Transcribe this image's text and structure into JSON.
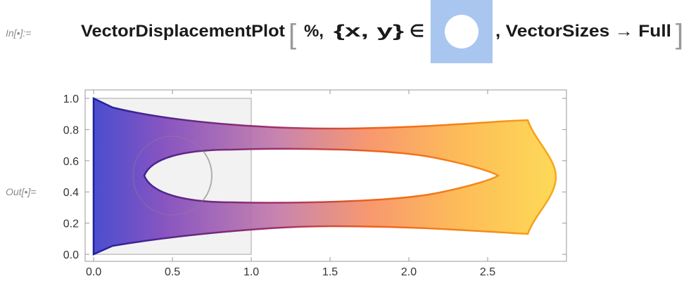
{
  "input": {
    "label": "In[•]:=",
    "function": "VectorDisplacementPlot",
    "open_bracket": "[",
    "arg1": "%,",
    "vars": "{x, y}",
    "element": "∈",
    "option": ", VectorSizes → Full",
    "close_bracket": "]"
  },
  "output": {
    "label": "Out[•]=",
    "plot": {
      "xlim": [
        -0.054,
        3.0
      ],
      "ylim": [
        -0.045,
        1.054
      ],
      "xticks": [
        {
          "value": 0,
          "label": "0.0"
        },
        0.5,
        {
          "value": 1,
          "label": "1.0"
        },
        1.5,
        {
          "value": 2,
          "label": "2.0"
        },
        2.5
      ],
      "yticks": [
        {
          "value": 0,
          "label": "0.0"
        },
        0.2,
        0.4,
        0.6,
        0.8,
        {
          "value": 1,
          "label": "1.0"
        }
      ]
    }
  }
}
